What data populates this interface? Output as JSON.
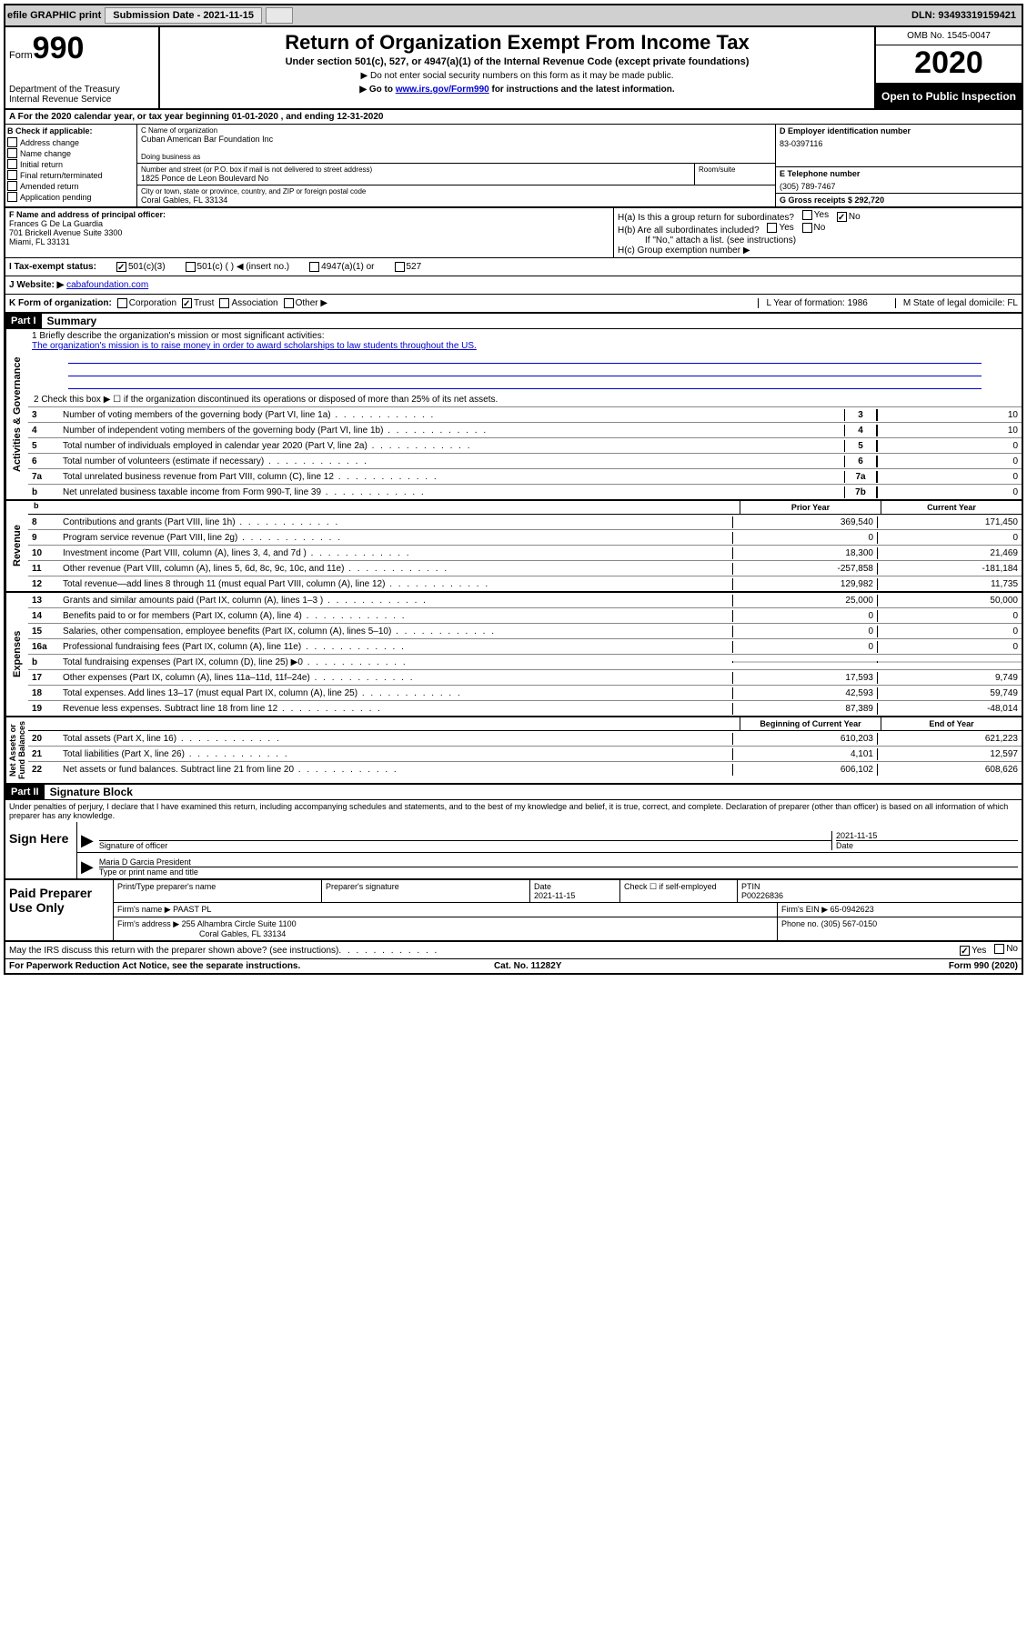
{
  "topbar": {
    "efile": "efile GRAPHIC print",
    "submission_label": "Submission Date - 2021-11-15",
    "dln": "DLN: 93493319159421"
  },
  "header": {
    "form_prefix": "Form",
    "form_num": "990",
    "dept": "Department of the Treasury",
    "irs": "Internal Revenue Service",
    "title": "Return of Organization Exempt From Income Tax",
    "sub": "Under section 501(c), 527, or 4947(a)(1) of the Internal Revenue Code (except private foundations)",
    "sub2": "▶ Do not enter social security numbers on this form as it may be made public.",
    "sub3_pre": "▶ Go to ",
    "sub3_link": "www.irs.gov/Form990",
    "sub3_post": " for instructions and the latest information.",
    "omb": "OMB No. 1545-0047",
    "year": "2020",
    "open": "Open to Public Inspection"
  },
  "row_a": "A   For the 2020 calendar year, or tax year beginning 01-01-2020    , and ending 12-31-2020",
  "section_b": {
    "label": "B Check if applicable:",
    "items": [
      "Address change",
      "Name change",
      "Initial return",
      "Final return/terminated",
      "Amended return",
      "Application pending"
    ]
  },
  "section_c": {
    "name_label": "C Name of organization",
    "name": "Cuban American Bar Foundation Inc",
    "dba_label": "Doing business as",
    "addr_label": "Number and street (or P.O. box if mail is not delivered to street address)",
    "room_label": "Room/suite",
    "addr": "1825 Ponce de Leon Boulevard No",
    "city_label": "City or town, state or province, country, and ZIP or foreign postal code",
    "city": "Coral Gables, FL  33134"
  },
  "section_d": {
    "ein_label": "D Employer identification number",
    "ein": "83-0397116",
    "tel_label": "E Telephone number",
    "tel": "(305) 789-7467",
    "gross_label": "G Gross receipts $ 292,720"
  },
  "section_f": {
    "label": "F  Name and address of principal officer:",
    "name": "Frances G De La Guardia",
    "addr1": "701 Brickell Avenue Suite 3300",
    "addr2": "Miami, FL  33131"
  },
  "section_h": {
    "ha": "H(a)  Is this a group return for subordinates?",
    "hb": "H(b)  Are all subordinates included?",
    "hb_note": "If \"No,\" attach a list. (see instructions)",
    "hc": "H(c)  Group exemption number ▶"
  },
  "section_i": {
    "label": "I   Tax-exempt status:",
    "opt1": "501(c)(3)",
    "opt2": "501(c) (  ) ◀ (insert no.)",
    "opt3": "4947(a)(1) or",
    "opt4": "527"
  },
  "section_j": {
    "label": "J   Website: ▶",
    "url": "cabafoundation.com"
  },
  "section_k": {
    "label": "K Form of organization:",
    "opts": [
      "Corporation",
      "Trust",
      "Association",
      "Other ▶"
    ],
    "l": "L Year of formation: 1986",
    "m": "M State of legal domicile: FL"
  },
  "part1": {
    "hdr": "Part I",
    "title": "Summary",
    "mission_label": "1   Briefly describe the organization's mission or most significant activities:",
    "mission": "The organization's mission is to raise money in order to award scholarships to law students throughout the US.",
    "line2": "2   Check this box ▶ ☐  if the organization discontinued its operations or disposed of more than 25% of its net assets."
  },
  "gov_lines": [
    {
      "n": "3",
      "t": "Number of voting members of the governing body (Part VI, line 1a)",
      "b": "3",
      "v": "10"
    },
    {
      "n": "4",
      "t": "Number of independent voting members of the governing body (Part VI, line 1b)",
      "b": "4",
      "v": "10"
    },
    {
      "n": "5",
      "t": "Total number of individuals employed in calendar year 2020 (Part V, line 2a)",
      "b": "5",
      "v": "0"
    },
    {
      "n": "6",
      "t": "Total number of volunteers (estimate if necessary)",
      "b": "6",
      "v": "0"
    },
    {
      "n": "7a",
      "t": "Total unrelated business revenue from Part VIII, column (C), line 12",
      "b": "7a",
      "v": "0"
    },
    {
      "n": "b",
      "t": "Net unrelated business taxable income from Form 990-T, line 39",
      "b": "7b",
      "v": "0"
    }
  ],
  "rev_hdr": {
    "prior": "Prior Year",
    "curr": "Current Year"
  },
  "rev_lines": [
    {
      "n": "8",
      "t": "Contributions and grants (Part VIII, line 1h)",
      "p": "369,540",
      "c": "171,450"
    },
    {
      "n": "9",
      "t": "Program service revenue (Part VIII, line 2g)",
      "p": "0",
      "c": "0"
    },
    {
      "n": "10",
      "t": "Investment income (Part VIII, column (A), lines 3, 4, and 7d )",
      "p": "18,300",
      "c": "21,469"
    },
    {
      "n": "11",
      "t": "Other revenue (Part VIII, column (A), lines 5, 6d, 8c, 9c, 10c, and 11e)",
      "p": "-257,858",
      "c": "-181,184"
    },
    {
      "n": "12",
      "t": "Total revenue—add lines 8 through 11 (must equal Part VIII, column (A), line 12)",
      "p": "129,982",
      "c": "11,735"
    }
  ],
  "exp_lines": [
    {
      "n": "13",
      "t": "Grants and similar amounts paid (Part IX, column (A), lines 1–3 )",
      "p": "25,000",
      "c": "50,000"
    },
    {
      "n": "14",
      "t": "Benefits paid to or for members (Part IX, column (A), line 4)",
      "p": "0",
      "c": "0"
    },
    {
      "n": "15",
      "t": "Salaries, other compensation, employee benefits (Part IX, column (A), lines 5–10)",
      "p": "0",
      "c": "0"
    },
    {
      "n": "16a",
      "t": "Professional fundraising fees (Part IX, column (A), line 11e)",
      "p": "0",
      "c": "0"
    },
    {
      "n": "b",
      "t": "Total fundraising expenses (Part IX, column (D), line 25) ▶0",
      "p": "",
      "c": "",
      "shade": true
    },
    {
      "n": "17",
      "t": "Other expenses (Part IX, column (A), lines 11a–11d, 11f–24e)",
      "p": "17,593",
      "c": "9,749"
    },
    {
      "n": "18",
      "t": "Total expenses. Add lines 13–17 (must equal Part IX, column (A), line 25)",
      "p": "42,593",
      "c": "59,749"
    },
    {
      "n": "19",
      "t": "Revenue less expenses. Subtract line 18 from line 12",
      "p": "87,389",
      "c": "-48,014"
    }
  ],
  "net_hdr": {
    "prior": "Beginning of Current Year",
    "curr": "End of Year"
  },
  "net_lines": [
    {
      "n": "20",
      "t": "Total assets (Part X, line 16)",
      "p": "610,203",
      "c": "621,223"
    },
    {
      "n": "21",
      "t": "Total liabilities (Part X, line 26)",
      "p": "4,101",
      "c": "12,597"
    },
    {
      "n": "22",
      "t": "Net assets or fund balances. Subtract line 21 from line 20",
      "p": "606,102",
      "c": "608,626"
    }
  ],
  "part2": {
    "hdr": "Part II",
    "title": "Signature Block",
    "decl": "Under penalties of perjury, I declare that I have examined this return, including accompanying schedules and statements, and to the best of my knowledge and belief, it is true, correct, and complete. Declaration of preparer (other than officer) is based on all information of which preparer has any knowledge."
  },
  "sign": {
    "left": "Sign Here",
    "sig_label": "Signature of officer",
    "date": "2021-11-15",
    "date_label": "Date",
    "name": "Maria D Garcia  President",
    "name_label": "Type or print name and title"
  },
  "prep": {
    "left": "Paid Preparer Use Only",
    "h1": "Print/Type preparer's name",
    "h2": "Preparer's signature",
    "h3_label": "Date",
    "h3": "2021-11-15",
    "h4": "Check ☐  if self-employed",
    "h5_label": "PTIN",
    "h5": "P00226836",
    "firm_label": "Firm's name    ▶",
    "firm": "PAAST PL",
    "ein_label": "Firm's EIN ▶",
    "ein": "65-0942623",
    "addr_label": "Firm's address ▶",
    "addr1": "255 Alhambra Circle Suite 1100",
    "addr2": "Coral Gables, FL  33134",
    "phone_label": "Phone no.",
    "phone": "(305) 567-0150"
  },
  "discuss": "May the IRS discuss this return with the preparer shown above? (see instructions)",
  "footer": {
    "left": "For Paperwork Reduction Act Notice, see the separate instructions.",
    "mid": "Cat. No. 11282Y",
    "right": "Form 990 (2020)"
  },
  "colors": {
    "link": "#0000cc",
    "shade": "#cccccc",
    "topbar_bg": "#d0d0d0"
  }
}
